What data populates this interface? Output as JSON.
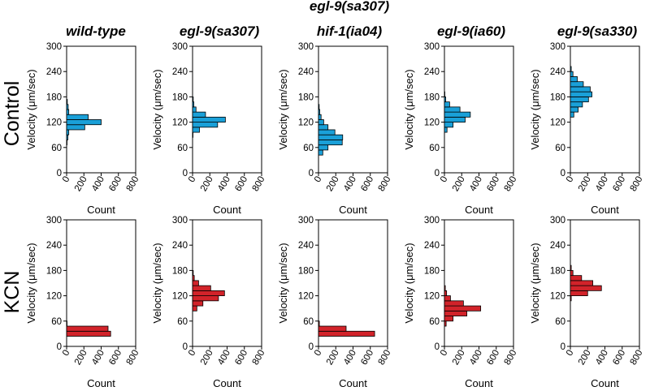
{
  "figure": {
    "columns": [
      "wild-type",
      "egl-9(sa307)",
      "egl-9(sa307)\nhif-1(ia04)",
      "egl-9(ia60)",
      "egl-9(sa330)"
    ],
    "rows": [
      "Control",
      "KCN"
    ],
    "colors": {
      "Control": "#1aa0d8",
      "KCN": "#d2232a"
    }
  },
  "chart_data": [
    {
      "type": "bar",
      "orientation": "horizontal",
      "row": "Control",
      "column": "wild-type",
      "bins": [
        [
          66,
          78,
          5
        ],
        [
          78,
          90,
          15
        ],
        [
          90,
          102,
          25
        ],
        [
          102,
          114,
          210
        ],
        [
          114,
          126,
          400
        ],
        [
          126,
          138,
          250
        ],
        [
          138,
          150,
          25
        ],
        [
          150,
          162,
          18
        ],
        [
          162,
          174,
          8
        ]
      ],
      "xlabel": "Count",
      "ylabel": "Velocity (μm/sec)",
      "xlim": [
        0,
        800
      ],
      "ylim": [
        0,
        300
      ],
      "xticks": [
        "0",
        "200",
        "400",
        "600",
        "800"
      ],
      "yticks": [
        "0",
        "60",
        "120",
        "180",
        "240",
        "300"
      ]
    },
    {
      "type": "bar",
      "orientation": "horizontal",
      "row": "Control",
      "column": "egl-9(sa307)",
      "bins": [
        [
          84,
          96,
          5
        ],
        [
          96,
          108,
          80
        ],
        [
          108,
          120,
          290
        ],
        [
          120,
          132,
          380
        ],
        [
          132,
          144,
          150
        ],
        [
          144,
          156,
          40
        ],
        [
          156,
          168,
          15
        ],
        [
          168,
          180,
          8
        ]
      ],
      "xlabel": "Count",
      "ylabel": "Velocity (μm/sec)",
      "xlim": [
        0,
        800
      ],
      "ylim": [
        0,
        300
      ],
      "xticks": [
        "0",
        "200",
        "400",
        "600",
        "800"
      ],
      "yticks": [
        "0",
        "60",
        "120",
        "180",
        "240",
        "300"
      ]
    },
    {
      "type": "bar",
      "orientation": "horizontal",
      "row": "Control",
      "column": "egl-9(sa307)\nhif-1(ia04)",
      "bins": [
        [
          42,
          54,
          50
        ],
        [
          54,
          66,
          110
        ],
        [
          66,
          78,
          275
        ],
        [
          78,
          90,
          280
        ],
        [
          90,
          102,
          190
        ],
        [
          102,
          114,
          110
        ],
        [
          114,
          126,
          60
        ],
        [
          126,
          138,
          30
        ],
        [
          138,
          150,
          15
        ],
        [
          150,
          162,
          8
        ]
      ],
      "xlabel": "Count",
      "ylabel": "Velocity (μm/sec)",
      "xlim": [
        0,
        800
      ],
      "ylim": [
        0,
        300
      ],
      "xticks": [
        "0",
        "200",
        "400",
        "600",
        "800"
      ],
      "yticks": [
        "0",
        "60",
        "120",
        "180",
        "240",
        "300"
      ]
    },
    {
      "type": "bar",
      "orientation": "horizontal",
      "row": "Control",
      "column": "egl-9(ia60)",
      "bins": [
        [
          96,
          108,
          30
        ],
        [
          108,
          120,
          100
        ],
        [
          120,
          132,
          240
        ],
        [
          132,
          144,
          300
        ],
        [
          144,
          156,
          180
        ],
        [
          156,
          168,
          60
        ],
        [
          168,
          180,
          15
        ],
        [
          180,
          192,
          5
        ]
      ],
      "xlabel": "Count",
      "ylabel": "Velocity (μm/sec)",
      "xlim": [
        0,
        800
      ],
      "ylim": [
        0,
        300
      ],
      "xticks": [
        "0",
        "200",
        "400",
        "600",
        "800"
      ],
      "yticks": [
        "0",
        "60",
        "120",
        "180",
        "240",
        "300"
      ]
    },
    {
      "type": "bar",
      "orientation": "horizontal",
      "row": "Control",
      "column": "egl-9(sa330)",
      "bins": [
        [
          132,
          144,
          40
        ],
        [
          144,
          156,
          90
        ],
        [
          156,
          168,
          140
        ],
        [
          168,
          180,
          210
        ],
        [
          180,
          192,
          250
        ],
        [
          192,
          204,
          230
        ],
        [
          204,
          216,
          150
        ],
        [
          216,
          228,
          80
        ],
        [
          228,
          240,
          30
        ],
        [
          240,
          252,
          10
        ]
      ],
      "xlabel": "Count",
      "ylabel": "Velocity (μm/sec)",
      "xlim": [
        0,
        800
      ],
      "ylim": [
        0,
        300
      ],
      "xticks": [
        "0",
        "200",
        "400",
        "600",
        "800"
      ],
      "yticks": [
        "0",
        "60",
        "120",
        "180",
        "240",
        "300"
      ]
    },
    {
      "type": "bar",
      "orientation": "horizontal",
      "row": "KCN",
      "column": "wild-type",
      "bins": [
        [
          24,
          36,
          510
        ],
        [
          36,
          48,
          480
        ],
        [
          48,
          60,
          5
        ]
      ],
      "xlabel": "Count",
      "ylabel": "Velocity (μm/sec)",
      "xlim": [
        0,
        800
      ],
      "ylim": [
        0,
        300
      ],
      "xticks": [
        "0",
        "200",
        "400",
        "600",
        "800"
      ],
      "yticks": [
        "0",
        "60",
        "120",
        "180",
        "240",
        "300"
      ]
    },
    {
      "type": "bar",
      "orientation": "horizontal",
      "row": "KCN",
      "column": "egl-9(sa307)",
      "bins": [
        [
          84,
          96,
          50
        ],
        [
          96,
          108,
          120
        ],
        [
          108,
          120,
          300
        ],
        [
          120,
          132,
          370
        ],
        [
          132,
          144,
          210
        ],
        [
          144,
          156,
          70
        ],
        [
          156,
          168,
          20
        ],
        [
          168,
          180,
          8
        ]
      ],
      "xlabel": "Count",
      "ylabel": "Velocity (μm/sec)",
      "xlim": [
        0,
        800
      ],
      "ylim": [
        0,
        300
      ],
      "xticks": [
        "0",
        "200",
        "400",
        "600",
        "800"
      ],
      "yticks": [
        "0",
        "60",
        "120",
        "180",
        "240",
        "300"
      ]
    },
    {
      "type": "bar",
      "orientation": "horizontal",
      "row": "KCN",
      "column": "egl-9(sa307)\nhif-1(ia04)",
      "bins": [
        [
          24,
          36,
          650
        ],
        [
          36,
          48,
          320
        ],
        [
          48,
          60,
          10
        ]
      ],
      "xlabel": "Count",
      "ylabel": "Velocity (μm/sec)",
      "xlim": [
        0,
        800
      ],
      "ylim": [
        0,
        300
      ],
      "xticks": [
        "0",
        "200",
        "400",
        "600",
        "800"
      ],
      "yticks": [
        "0",
        "60",
        "120",
        "180",
        "240",
        "300"
      ]
    },
    {
      "type": "bar",
      "orientation": "horizontal",
      "row": "KCN",
      "column": "egl-9(ia60)",
      "bins": [
        [
          48,
          60,
          20
        ],
        [
          60,
          72,
          100
        ],
        [
          72,
          84,
          260
        ],
        [
          84,
          96,
          420
        ],
        [
          96,
          108,
          220
        ],
        [
          108,
          120,
          70
        ],
        [
          120,
          132,
          25
        ],
        [
          132,
          144,
          10
        ]
      ],
      "xlabel": "Count",
      "ylabel": "Velocity (μm/sec)",
      "xlim": [
        0,
        800
      ],
      "ylim": [
        0,
        300
      ],
      "xticks": [
        "0",
        "200",
        "400",
        "600",
        "800"
      ],
      "yticks": [
        "0",
        "60",
        "120",
        "180",
        "240",
        "300"
      ]
    },
    {
      "type": "bar",
      "orientation": "horizontal",
      "row": "KCN",
      "column": "egl-9(sa330)",
      "bins": [
        [
          108,
          120,
          10
        ],
        [
          120,
          132,
          200
        ],
        [
          132,
          144,
          360
        ],
        [
          144,
          156,
          260
        ],
        [
          156,
          168,
          130
        ],
        [
          168,
          180,
          30
        ],
        [
          180,
          192,
          10
        ]
      ],
      "xlabel": "Count",
      "ylabel": "Velocity (μm/sec)",
      "xlim": [
        0,
        800
      ],
      "ylim": [
        0,
        300
      ],
      "xticks": [
        "0",
        "200",
        "400",
        "600",
        "800"
      ],
      "yticks": [
        "0",
        "60",
        "120",
        "180",
        "240",
        "300"
      ]
    }
  ]
}
